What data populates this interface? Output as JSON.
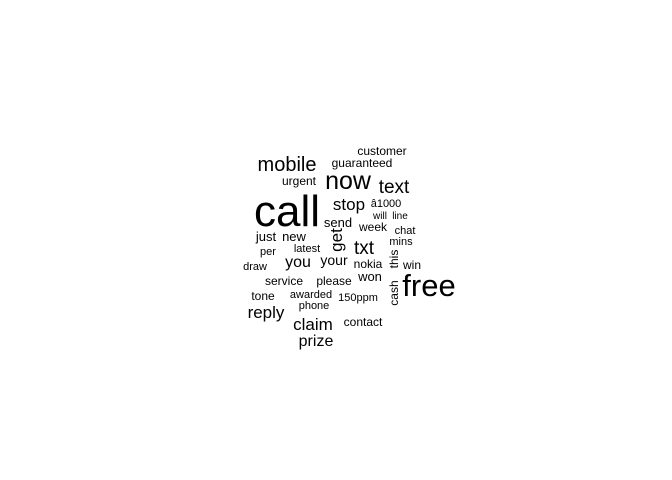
{
  "chart_data": {
    "type": "wordcloud",
    "color": "#000000",
    "background": "#ffffff",
    "words": [
      {
        "text": "call",
        "freq": 100
      },
      {
        "text": "free",
        "freq": 60
      },
      {
        "text": "now",
        "freq": 52
      },
      {
        "text": "mobile",
        "freq": 40
      },
      {
        "text": "text",
        "freq": 38
      },
      {
        "text": "txt",
        "freq": 38
      },
      {
        "text": "claim",
        "freq": 35
      },
      {
        "text": "reply",
        "freq": 35
      },
      {
        "text": "get",
        "freq": 34
      },
      {
        "text": "stop",
        "freq": 34
      },
      {
        "text": "you",
        "freq": 32
      },
      {
        "text": "prize",
        "freq": 31
      },
      {
        "text": "your",
        "freq": 28
      },
      {
        "text": "send",
        "freq": 25
      },
      {
        "text": "just",
        "freq": 25
      },
      {
        "text": "new",
        "freq": 25
      },
      {
        "text": "won",
        "freq": 25
      },
      {
        "text": "guaranteed",
        "freq": 24
      },
      {
        "text": "urgent",
        "freq": 23
      },
      {
        "text": "nokia",
        "freq": 23
      },
      {
        "text": "service",
        "freq": 23
      },
      {
        "text": "please",
        "freq": 23
      },
      {
        "text": "tone",
        "freq": 22
      },
      {
        "text": "contact",
        "freq": 22
      },
      {
        "text": "customer",
        "freq": 22
      },
      {
        "text": "cash",
        "freq": 22
      },
      {
        "text": "win",
        "freq": 21
      },
      {
        "text": "week",
        "freq": 21
      },
      {
        "text": "this",
        "freq": 20
      },
      {
        "text": "chat",
        "freq": 19
      },
      {
        "text": "mins",
        "freq": 18
      },
      {
        "text": "â1000",
        "freq": 18
      },
      {
        "text": "per",
        "freq": 18
      },
      {
        "text": "latest",
        "freq": 18
      },
      {
        "text": "awarded",
        "freq": 18
      },
      {
        "text": "draw",
        "freq": 18
      },
      {
        "text": "will",
        "freq": 17
      },
      {
        "text": "line",
        "freq": 17
      },
      {
        "text": "phone",
        "freq": 17
      },
      {
        "text": "150ppm",
        "freq": 17
      }
    ]
  }
}
